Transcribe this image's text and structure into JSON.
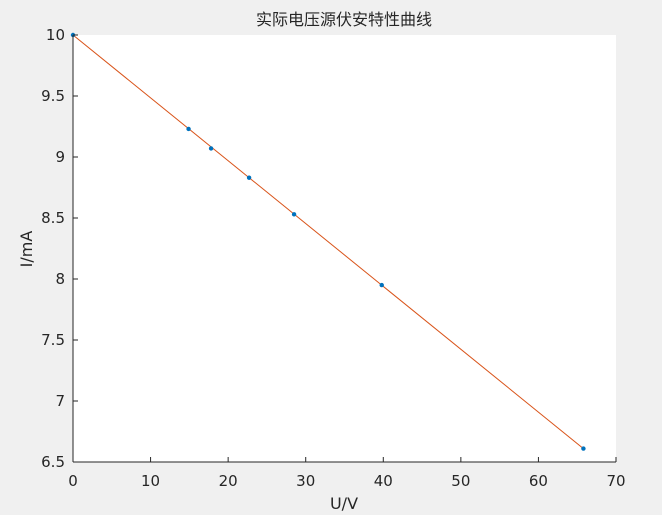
{
  "chart_data": {
    "type": "scatter",
    "title": "实际电压源伏安特性曲线",
    "xlabel": "U/V",
    "ylabel": "I/mA",
    "xlim": [
      0,
      70
    ],
    "ylim": [
      6.5,
      10
    ],
    "xticks": [
      0,
      10,
      20,
      30,
      40,
      50,
      60,
      70
    ],
    "yticks": [
      6.5,
      7,
      7.5,
      8,
      8.5,
      9,
      9.5,
      10
    ],
    "xtick_labels": [
      "0",
      "10",
      "20",
      "30",
      "40",
      "50",
      "60",
      "70"
    ],
    "ytick_labels": [
      "6.5",
      "7",
      "7.5",
      "8",
      "8.5",
      "9",
      "9.5",
      "10"
    ],
    "grid": false,
    "series": [
      {
        "kind": "points",
        "color": "#0072BD",
        "x": [
          0,
          14.9,
          17.8,
          22.7,
          28.5,
          39.8,
          65.8
        ],
        "y": [
          10.0,
          9.23,
          9.07,
          8.83,
          8.53,
          7.95,
          6.61
        ]
      },
      {
        "kind": "fit-line",
        "color": "#D95319",
        "x": [
          0,
          65.8
        ],
        "y": [
          10.0,
          6.61
        ]
      }
    ]
  }
}
